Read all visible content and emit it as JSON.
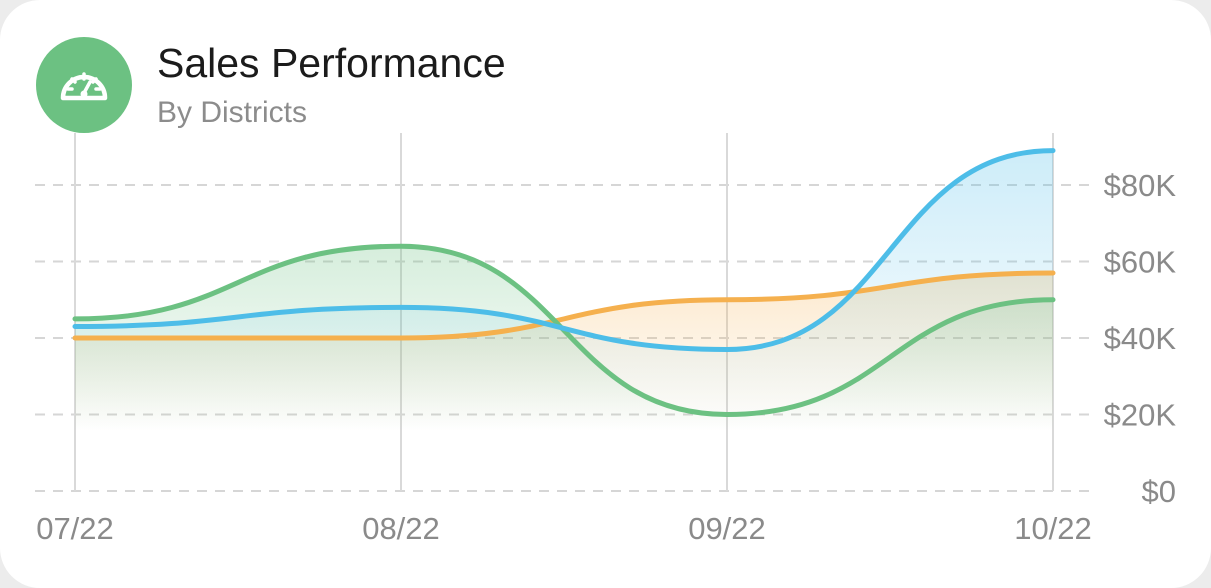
{
  "header": {
    "title": "Sales Performance",
    "subtitle": "By Districts",
    "icon": "speedometer-icon",
    "icon_bg": "#6cc182"
  },
  "chart_data": {
    "type": "area",
    "title": "Sales Performance",
    "subtitle": "By Districts",
    "categories": [
      "07/22",
      "08/22",
      "09/22",
      "10/22"
    ],
    "y_ticks": [
      "$0",
      "$20K",
      "$40K",
      "$60K",
      "$80K"
    ],
    "ylim": [
      0,
      80000
    ],
    "y_axis_position": "right",
    "grid": {
      "horizontal": "dashed",
      "vertical": "solid"
    },
    "legend": "none",
    "series": [
      {
        "color": "#f5b04e",
        "values": [
          40000,
          40000,
          50000,
          57000
        ]
      },
      {
        "color": "#6cc182",
        "values": [
          45000,
          64000,
          20000,
          50000
        ]
      },
      {
        "color": "#4dbde8",
        "values": [
          43000,
          48000,
          37000,
          89000
        ]
      }
    ]
  }
}
